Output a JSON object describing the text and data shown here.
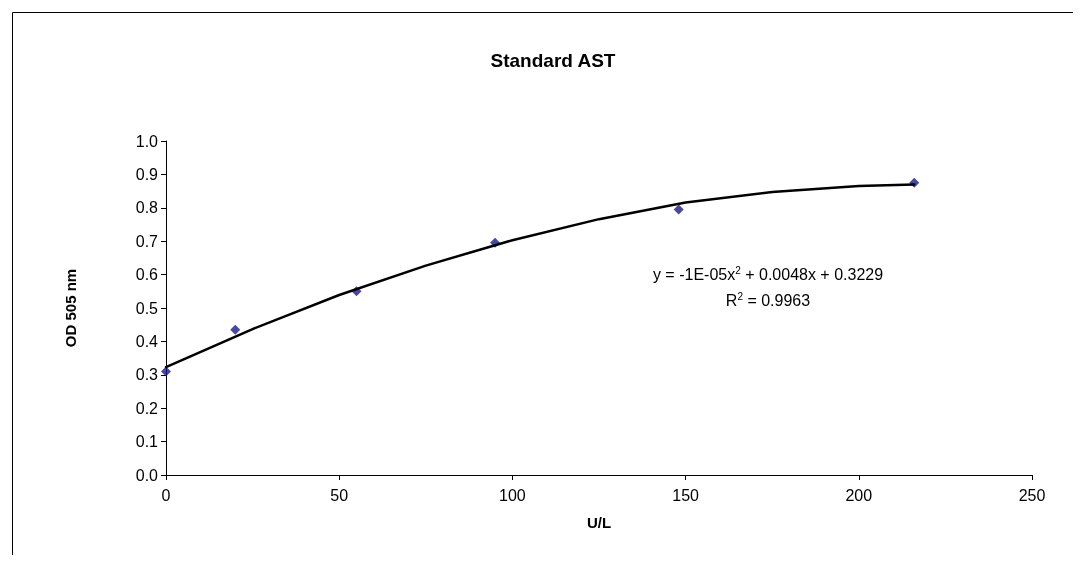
{
  "chart_data": {
    "type": "scatter",
    "title": "Standard AST",
    "xlabel": "U/L",
    "ylabel": "OD 505 nm",
    "xlim": [
      0,
      250
    ],
    "xticks": [
      0,
      50,
      100,
      150,
      200,
      250
    ],
    "ylim": [
      0,
      1
    ],
    "yticks": [
      {
        "value": 0,
        "label": "0.0"
      },
      0.1,
      0.2,
      0.3,
      0.4,
      0.5,
      0.6,
      0.7,
      0.8,
      0.9,
      {
        "value": 1,
        "label": "1.0"
      }
    ],
    "series": [
      {
        "color": "#1a1a8c",
        "marker": "diamond",
        "x": [
          0,
          20,
          55,
          95,
          148,
          216
        ],
        "values": [
          0.31,
          0.435,
          0.55,
          0.695,
          0.795,
          0.875
        ]
      },
      {
        "type": "line",
        "color": "#000000",
        "marker": "none",
        "x": [
          0,
          25,
          50,
          75,
          100,
          125,
          150,
          175,
          200,
          216
        ],
        "values": [
          0.323,
          0.437,
          0.539,
          0.627,
          0.703,
          0.766,
          0.816,
          0.847,
          0.865,
          0.87
        ]
      }
    ],
    "annotations": [
      "y = -1E-05x$^{2}$ + 0.0048x + 0.3229",
      "R$^{2}$ = 0.9963"
    ],
    "grid": false
  }
}
